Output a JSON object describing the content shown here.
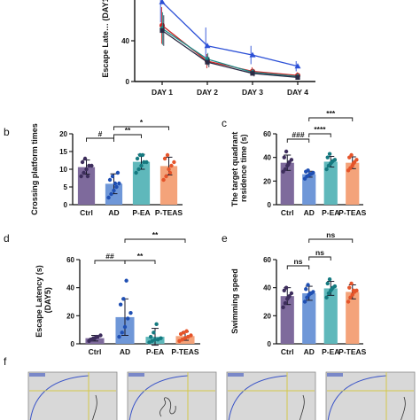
{
  "panel_labels": [
    "b",
    "c",
    "d",
    "e",
    "f"
  ],
  "colors": {
    "ctrl": "#7e6a9c",
    "ad": "#6f97d8",
    "pea": "#5fb8bb",
    "pteas": "#f4a37a",
    "ctrl_dot": "#3d2d5c",
    "ad_dot": "#1f4fb3",
    "pea_dot": "#157a80",
    "pteas_dot": "#e5542a",
    "line_blue": "#2b4fd6",
    "line_red": "#cc2222",
    "line_teal": "#1f8a88",
    "line_dark": "#2a2a44"
  },
  "chart_data": [
    {
      "id": "top_line",
      "type": "line",
      "title": "",
      "ylabel": "Escape Late… (DAY1–",
      "categories": [
        "DAY 1",
        "DAY 2",
        "DAY 3",
        "DAY 4"
      ],
      "ylim": [
        0,
        80
      ],
      "yticks": [
        0,
        40
      ],
      "series": [
        {
          "values": [
            78,
            35,
            26,
            15
          ],
          "errors": [
            20,
            18,
            9,
            5
          ]
        },
        {
          "values": [
            55,
            20,
            10,
            6
          ],
          "errors": [
            18,
            7,
            4,
            3
          ]
        },
        {
          "values": [
            52,
            22,
            9,
            5
          ],
          "errors": [
            16,
            6,
            3,
            2
          ]
        },
        {
          "values": [
            50,
            19,
            8,
            4
          ],
          "errors": [
            15,
            5,
            3,
            2
          ]
        }
      ]
    },
    {
      "id": "b",
      "type": "bar",
      "ylabel": "Crossing platform times",
      "categories": [
        "Ctrl",
        "AD",
        "P-EA",
        "P-TEAS"
      ],
      "ylim": [
        0,
        20
      ],
      "yticks": [
        0,
        5,
        10,
        15,
        20
      ],
      "values": [
        10.6,
        5.9,
        12.1,
        10.9
      ],
      "errors": [
        2.0,
        2.8,
        2.1,
        2.5
      ],
      "points": [
        [
          8,
          9,
          10,
          11,
          11,
          12,
          13,
          8
        ],
        [
          2,
          3,
          4,
          5,
          6,
          7,
          8,
          6,
          9
        ],
        [
          9,
          10,
          11,
          12,
          12,
          13,
          14,
          14
        ],
        [
          7,
          8,
          10,
          11,
          12,
          13,
          14,
          9
        ]
      ],
      "significance": [
        {
          "from": 0,
          "to": 1,
          "label": "#"
        },
        {
          "from": 1,
          "to": 2,
          "label": "**"
        },
        {
          "from": 1,
          "to": 3,
          "label": "*"
        }
      ]
    },
    {
      "id": "c",
      "type": "bar",
      "ylabel": "The target quadrant residence time (s)",
      "categories": [
        "Ctrl",
        "AD",
        "P-EA",
        "P-TEAS"
      ],
      "ylim": [
        0,
        60
      ],
      "yticks": [
        0,
        20,
        40,
        60
      ],
      "values": [
        35.5,
        25.8,
        36.4,
        35.5
      ],
      "errors": [
        6.5,
        2.5,
        4.5,
        5.0
      ],
      "points": [
        [
          28,
          30,
          33,
          36,
          38,
          40,
          45,
          34
        ],
        [
          22,
          24,
          25,
          26,
          27,
          28,
          29,
          26
        ],
        [
          30,
          33,
          35,
          37,
          38,
          40,
          43,
          36
        ],
        [
          29,
          31,
          33,
          36,
          38,
          40,
          42,
          35
        ]
      ],
      "significance": [
        {
          "from": 0,
          "to": 1,
          "label": "###"
        },
        {
          "from": 1,
          "to": 2,
          "label": "****"
        },
        {
          "from": 1,
          "to": 3,
          "label": "***"
        }
      ]
    },
    {
      "id": "d",
      "type": "bar",
      "ylabel": "Escape Latency (s) (DAY5)",
      "categories": [
        "Ctrl",
        "AD",
        "P-EA",
        "P-TEAS"
      ],
      "ylim": [
        0,
        60
      ],
      "yticks": [
        0,
        20,
        40,
        60
      ],
      "values": [
        4,
        19,
        5,
        5.5
      ],
      "errors": [
        2,
        13,
        6,
        3
      ],
      "points": [
        [
          2,
          3,
          4,
          5,
          6,
          3,
          4,
          5
        ],
        [
          5,
          8,
          12,
          18,
          22,
          28,
          32,
          45
        ],
        [
          1,
          2,
          3,
          3,
          4,
          5,
          8,
          14
        ],
        [
          2,
          3,
          4,
          5,
          6,
          7,
          8,
          9
        ]
      ],
      "significance": [
        {
          "from": 0,
          "to": 1,
          "label": "##"
        },
        {
          "from": 1,
          "to": 2,
          "label": "**"
        },
        {
          "from": 1,
          "to": 3,
          "label": "**"
        }
      ]
    },
    {
      "id": "e",
      "type": "bar",
      "ylabel": "Swimming speed",
      "categories": [
        "Ctrl",
        "AD",
        "P-EA",
        "P-TEAS"
      ],
      "ylim": [
        0,
        60
      ],
      "yticks": [
        0,
        20,
        40,
        60
      ],
      "values": [
        34,
        36,
        39.5,
        37
      ],
      "errors": [
        6,
        5,
        5,
        5
      ],
      "points": [
        [
          26,
          29,
          32,
          34,
          36,
          38,
          40,
          33
        ],
        [
          30,
          33,
          35,
          36,
          37,
          39,
          42,
          36
        ],
        [
          33,
          36,
          38,
          40,
          41,
          43,
          46,
          39
        ],
        [
          30,
          33,
          35,
          37,
          38,
          40,
          43,
          38
        ]
      ],
      "significance": [
        {
          "from": 0,
          "to": 1,
          "label": "ns"
        },
        {
          "from": 1,
          "to": 2,
          "label": "ns"
        },
        {
          "from": 1,
          "to": 3,
          "label": "ns"
        }
      ]
    }
  ]
}
